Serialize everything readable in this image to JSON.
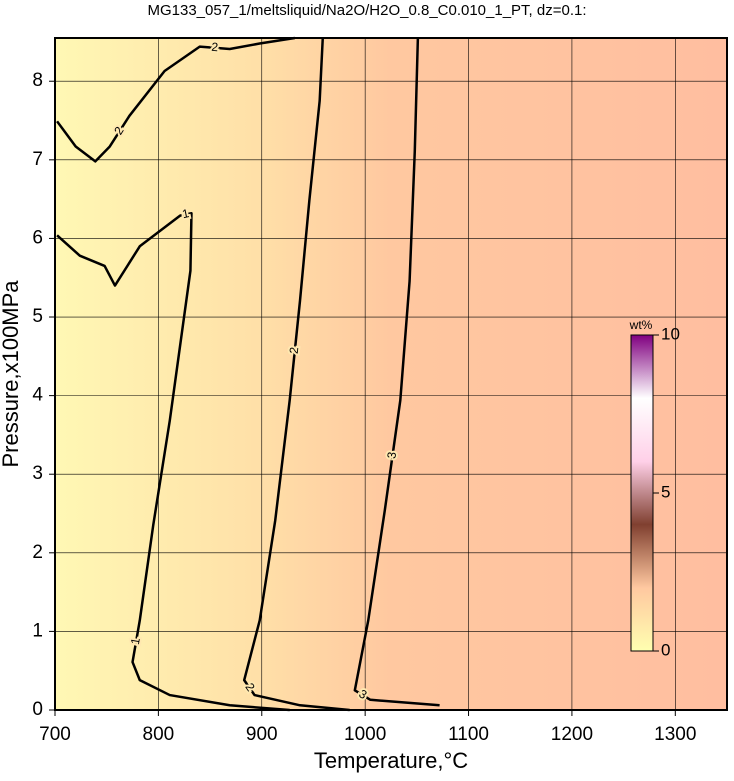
{
  "chart_data": {
    "type": "contour",
    "title": "MG133_057_1/meltsliquid/Na2O/H2O_0.8_C0.010_1_PT, dz=0.1:",
    "xlabel": "Temperature,°C",
    "ylabel": "Pressure,x100MPa",
    "xlim": [
      700,
      1350
    ],
    "xticks": [
      700,
      800,
      900,
      1000,
      1100,
      1200,
      1300
    ],
    "ylim": [
      0,
      8.55
    ],
    "yticks": [
      0,
      1,
      2,
      3,
      4,
      5,
      6,
      7,
      8
    ],
    "grid": true,
    "line_color": "#000000",
    "contours": [
      {
        "level": 1,
        "t": [
          702,
          724,
          748,
          758,
          782,
          821,
          832,
          831,
          811,
          795,
          782,
          775,
          782,
          811,
          869,
          927
        ],
        "p": [
          6.04,
          5.78,
          5.65,
          5.4,
          5.9,
          6.29,
          6.32,
          5.59,
          3.68,
          2.35,
          1.14,
          0.61,
          0.38,
          0.19,
          0.06,
          0
        ]
      },
      {
        "level": 2,
        "t": [
          702,
          720,
          739,
          753,
          772,
          806,
          840,
          869,
          898,
          932
        ],
        "p": [
          7.49,
          7.17,
          6.98,
          7.17,
          7.56,
          8.13,
          8.44,
          8.41,
          8.48,
          8.55
        ]
      },
      {
        "level": 2,
        "t": [
          959,
          956,
          946,
          937,
          927,
          913,
          898,
          883,
          893,
          937,
          985
        ],
        "p": [
          8.55,
          7.75,
          6.48,
          5.21,
          3.94,
          2.41,
          1.14,
          0.38,
          0.19,
          0.06,
          0
        ]
      },
      {
        "level": 3,
        "t": [
          1051,
          1048,
          1043,
          1034,
          1019,
          1003,
          990,
          1005,
          1072
        ],
        "p": [
          8.55,
          7.11,
          5.46,
          3.94,
          2.54,
          1.14,
          0.25,
          0.13,
          0.06
        ]
      }
    ],
    "colorbar": {
      "label": "wt%",
      "lim": [
        0,
        10
      ],
      "ticks": [
        0,
        5,
        10
      ],
      "colors": [
        "#ffffb0",
        "#ffc8a0",
        "#804030",
        "#ffd0e8",
        "#ffffff",
        "#800080"
      ]
    }
  }
}
